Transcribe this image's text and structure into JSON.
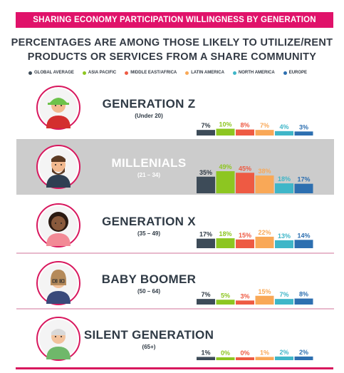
{
  "title": "SHARING ECONOMY PARTICIPATION WILLINGNESS BY GENERATION",
  "subtitle_line1": "PERCENTAGES ARE AMONG THOSE LIKELY TO UTILIZE/RENT",
  "subtitle_line2": "PRODUCTS OR SERVICES FROM A SHARE COMMUNITY",
  "colors": {
    "accent": "#e0126a",
    "highlight_row": "#cccccc",
    "text": "#2f3a45"
  },
  "chart_data": {
    "type": "bar",
    "legend": "top",
    "categories": [
      "GENERATION Z",
      "MILLENIALS",
      "GENERATION X",
      "BABY BOOMER",
      "SILENT GENERATION"
    ],
    "category_subtitles": [
      "(Under 20)",
      "(21 – 34)",
      "(35 – 49)",
      "(50 – 64)",
      "(65+)"
    ],
    "highlighted_category": "MILLENIALS",
    "series": [
      {
        "name": "GLOBAL AVERAGE",
        "color": "#3d4b58",
        "values": [
          7,
          35,
          17,
          7,
          1
        ],
        "labels": [
          "7%",
          "35%",
          "17%",
          "7%",
          "1%"
        ]
      },
      {
        "name": "ASIA PACIFIC",
        "color": "#8dc621",
        "values": [
          10,
          49,
          18,
          5,
          0
        ],
        "labels": [
          "10%",
          "49%",
          "18%",
          "5%",
          "0%"
        ]
      },
      {
        "name": "MIDDLE EAST/AFRICA",
        "color": "#ee5a43",
        "values": [
          8,
          45,
          15,
          3,
          0
        ],
        "labels": [
          "8%",
          "45%",
          "15%",
          "3%",
          "0%"
        ]
      },
      {
        "name": "LATIN AMERICA",
        "color": "#f9a857",
        "values": [
          7,
          38,
          22,
          15,
          1
        ],
        "labels": [
          "7%",
          "38%",
          "22%",
          "15%",
          "1%"
        ]
      },
      {
        "name": "NORTH AMERICA",
        "color": "#3fb6c8",
        "values": [
          4,
          18,
          13,
          7,
          2
        ],
        "labels": [
          "4%",
          "18%",
          "13%",
          "7%",
          "2%"
        ]
      },
      {
        "name": "EUROPE",
        "color": "#2d6fb0",
        "values": [
          3,
          17,
          14,
          8,
          2
        ],
        "labels": [
          "3%",
          "17%",
          "14%",
          "8%",
          "2%"
        ]
      }
    ]
  },
  "avatars": [
    {
      "icon": "teen-green-cap-avatar-icon",
      "skin": "#f2b98f",
      "hair": "#5a3a22",
      "shirt": "#d32f2f",
      "hat": "#6cc24a"
    },
    {
      "icon": "bearded-man-avatar-icon",
      "skin": "#f2b98f",
      "hair": "#5b3a23",
      "shirt": "#2e3f52",
      "beard": "#5b3a23"
    },
    {
      "icon": "woman-curly-hair-avatar-icon",
      "skin": "#8a5a3c",
      "hair": "#2a1a12",
      "shirt": "#f28a96"
    },
    {
      "icon": "older-woman-glasses-avatar-icon",
      "skin": "#f2c29c",
      "hair": "#b58a5a",
      "shirt": "#3a4a7a"
    },
    {
      "icon": "elderly-man-avatar-icon",
      "skin": "#f2c29c",
      "hair": "#d9d9d9",
      "shirt": "#6fb86a"
    }
  ]
}
